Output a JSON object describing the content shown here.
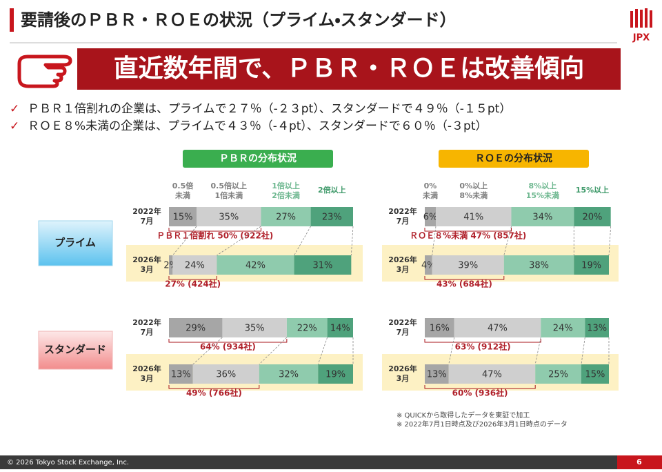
{
  "header": {
    "title": "要請後のＰＢＲ・ＲＯＥの状況（プライム・スタンダード）",
    "logo": "JPX"
  },
  "banner": "直近数年間で、ＰＢＲ・ＲＯＥは改善傾向",
  "bullets": [
    "ＰＢＲ１倍割れの企業は、プライムで２７％（-２３pt）、スタンダードで４９％（-１５pt）",
    "ＲＯＥ８%未満の企業は、プライムで４３％（-４pt）、スタンダードで６０％（-３pt）"
  ],
  "market_labels": [
    "プライム",
    "スタンダード"
  ],
  "charts": [
    {
      "title": "ＰＢＲの分布状況",
      "color": "#3aae4f",
      "xlim": [
        0,
        100
      ],
      "categories": [
        [
          "0.5倍",
          "未満"
        ],
        [
          "0.5倍以上",
          "1倍未満"
        ],
        [
          "1倍以上",
          "2倍未満"
        ],
        [
          "2倍以上"
        ]
      ],
      "colors": [
        "#a6a6a6",
        "#cfcfcf",
        "#8fcbad",
        "#4fa27c"
      ],
      "panels": [
        {
          "rows": [
            {
              "label": [
                "2022年",
                "7月"
              ],
              "values": [
                15,
                35,
                27,
                23
              ],
              "value_labels": [
                "15%",
                "35%",
                "27%",
                "23%"
              ],
              "note": "ＰＢＲ１倍割れ 50% (922社)"
            },
            {
              "label": [
                "2026年",
                "3月"
              ],
              "values": [
                2,
                24,
                42,
                31
              ],
              "value_labels": [
                "2%",
                "24%",
                "42%",
                "31%"
              ],
              "note": "27% (424社)"
            }
          ]
        },
        {
          "rows": [
            {
              "label": [
                "2022年",
                "7月"
              ],
              "values": [
                29,
                35,
                22,
                14
              ],
              "value_labels": [
                "29%",
                "35%",
                "22%",
                "14%"
              ],
              "note": "64% (934社)"
            },
            {
              "label": [
                "2026年",
                "3月"
              ],
              "values": [
                13,
                36,
                32,
                19
              ],
              "value_labels": [
                "13%",
                "36%",
                "32%",
                "19%"
              ],
              "note": "49% (766社)"
            }
          ]
        }
      ]
    },
    {
      "title": "ＲＯＥの分布状況",
      "color": "#f7b500",
      "xlim": [
        0,
        100
      ],
      "categories": [
        [
          "0%",
          "未満"
        ],
        [
          "0%以上",
          "8%未満"
        ],
        [
          "8%以上",
          "15%未満"
        ],
        [
          "15%以上"
        ]
      ],
      "colors": [
        "#a6a6a6",
        "#cfcfcf",
        "#8fcbad",
        "#4fa27c"
      ],
      "panels": [
        {
          "rows": [
            {
              "label": [
                "2022年",
                "7月"
              ],
              "values": [
                6,
                41,
                34,
                20
              ],
              "value_labels": [
                "6%",
                "41%",
                "34%",
                "20%"
              ],
              "note": "ＲＯＥ８%未満 47% (857社)"
            },
            {
              "label": [
                "2026年",
                "3月"
              ],
              "values": [
                4,
                39,
                38,
                19
              ],
              "value_labels": [
                "4%",
                "39%",
                "38%",
                "19%"
              ],
              "note": "43% (684社)"
            }
          ]
        },
        {
          "rows": [
            {
              "label": [
                "2022年",
                "7月"
              ],
              "values": [
                16,
                47,
                24,
                13
              ],
              "value_labels": [
                "16%",
                "47%",
                "24%",
                "13%"
              ],
              "note": "63% (912社)"
            },
            {
              "label": [
                "2026年",
                "3月"
              ],
              "values": [
                13,
                47,
                25,
                15
              ],
              "value_labels": [
                "13%",
                "47%",
                "25%",
                "15%"
              ],
              "note": "60% (936社)"
            }
          ]
        }
      ]
    }
  ],
  "footnotes": [
    "※ QUICKから取得したデータを東証で加工",
    "※ 2022年7月1日時点及び2026年3月1日時点のデータ"
  ],
  "footer": {
    "copyright": "© 2026 Tokyo Stock Exchange, Inc.",
    "page": "6"
  }
}
